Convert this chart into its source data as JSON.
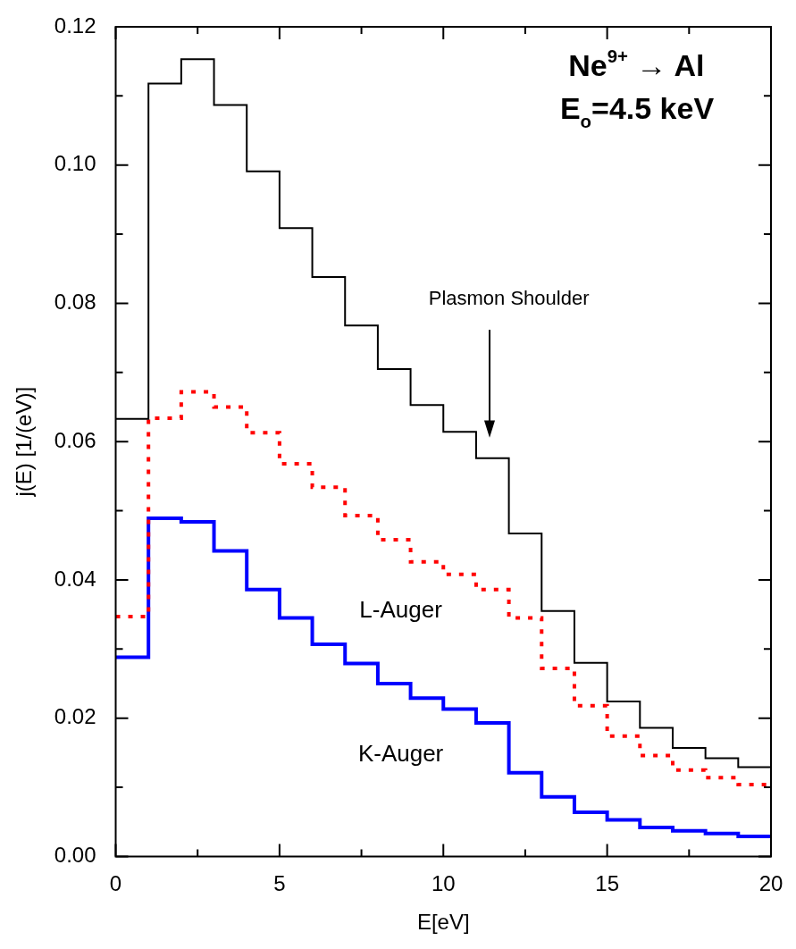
{
  "chart_data": {
    "type": "histogram",
    "xlabel": "E[eV]",
    "ylabel": "j(E) [1/(eV)]",
    "bins": [
      0,
      1,
      2,
      3,
      4,
      5,
      6,
      7,
      8,
      9,
      10,
      11,
      12,
      13,
      14,
      15,
      16,
      17,
      18,
      19,
      20
    ],
    "series": [
      {
        "color": "#000000",
        "line_style": "solid",
        "values": [
          0.0633,
          0.1118,
          0.1153,
          0.1087,
          0.0991,
          0.0909,
          0.0838,
          0.0768,
          0.0705,
          0.0653,
          0.0614,
          0.0576,
          0.0467,
          0.0355,
          0.028,
          0.0224,
          0.0186,
          0.0157,
          0.0142,
          0.0129
        ]
      },
      {
        "name": "L-Auger",
        "color": "#ff0000",
        "line_style": "dotted",
        "values": [
          0.0347,
          0.0634,
          0.0672,
          0.065,
          0.0613,
          0.0568,
          0.0534,
          0.0493,
          0.0458,
          0.0426,
          0.0408,
          0.0386,
          0.0345,
          0.0272,
          0.0218,
          0.0174,
          0.0146,
          0.0125,
          0.0114,
          0.0104
        ]
      },
      {
        "name": "K-Auger",
        "color": "#0000ff",
        "line_style": "solid",
        "values": [
          0.0288,
          0.0489,
          0.0484,
          0.0442,
          0.0386,
          0.0345,
          0.0307,
          0.0279,
          0.025,
          0.0229,
          0.0213,
          0.0193,
          0.0121,
          0.0086,
          0.0064,
          0.0053,
          0.0042,
          0.0037,
          0.0033,
          0.0029
        ]
      }
    ],
    "xlim": [
      0,
      20
    ],
    "xticks": [
      0,
      {
        "value": 2.5,
        "label": null
      },
      5,
      {
        "value": 7.5,
        "label": null
      },
      10,
      {
        "value": 12.5,
        "label": null
      },
      15,
      {
        "value": 17.5,
        "label": null
      },
      20
    ],
    "ylim": [
      0,
      0.12
    ],
    "yticks": [
      {
        "value": 0,
        "label": "0.00"
      },
      {
        "value": 0.01,
        "label": null
      },
      {
        "value": 0.02,
        "label": "0.02"
      },
      {
        "value": 0.03,
        "label": null
      },
      {
        "value": 0.04,
        "label": "0.04"
      },
      {
        "value": 0.05,
        "label": null
      },
      {
        "value": 0.06,
        "label": "0.06"
      },
      {
        "value": 0.07,
        "label": null
      },
      {
        "value": 0.08,
        "label": "0.08"
      },
      {
        "value": 0.09,
        "label": null
      },
      {
        "value": 0.1,
        "label": "0.10"
      },
      {
        "value": 0.11,
        "label": null
      },
      {
        "value": 0.12,
        "label": "0.12"
      }
    ],
    "annotations": [
      "Ne$^{9+}$ → Al",
      "E$_{o}$=4.5 keV",
      "Plasmon Shoulder"
    ],
    "legend": false
  }
}
